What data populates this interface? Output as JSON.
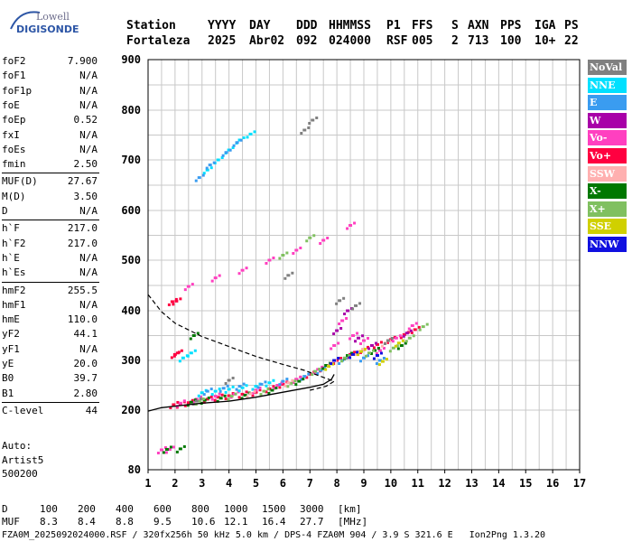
{
  "logo": {
    "line1": "Lowell",
    "line2": "DIGISONDE"
  },
  "header": {
    "labels": [
      "Station",
      "YYYY",
      "DAY",
      "DDD",
      "HHMMSS",
      "P1",
      "FFS",
      "S",
      "AXN",
      "PPS",
      "IGA",
      "PS"
    ],
    "values": [
      "Fortaleza",
      "2025",
      "Abr02",
      "092",
      "024000",
      "RSF",
      "005",
      "2",
      "713",
      "100",
      "10+",
      "22"
    ]
  },
  "params": [
    {
      "name": "foF2",
      "value": "7.900"
    },
    {
      "name": "foF1",
      "value": "N/A"
    },
    {
      "name": "foF1p",
      "value": "N/A"
    },
    {
      "name": "foE",
      "value": "N/A"
    },
    {
      "name": "foEp",
      "value": "0.52"
    },
    {
      "name": "fxI",
      "value": "N/A"
    },
    {
      "name": "foEs",
      "value": "N/A"
    },
    {
      "name": "fmin",
      "value": "2.50"
    },
    {
      "name": "MUF(D)",
      "value": "27.67"
    },
    {
      "name": "M(D)",
      "value": "3.50"
    },
    {
      "name": "D",
      "value": "N/A"
    },
    {
      "name": "h`F",
      "value": "217.0"
    },
    {
      "name": "h`F2",
      "value": "217.0"
    },
    {
      "name": "h`E",
      "value": "N/A"
    },
    {
      "name": "h`Es",
      "value": "N/A"
    },
    {
      "name": "hmF2",
      "value": "255.5"
    },
    {
      "name": "hmF1",
      "value": "N/A"
    },
    {
      "name": "hmE",
      "value": "110.0"
    },
    {
      "name": "yF2",
      "value": "44.1"
    },
    {
      "name": "yF1",
      "value": "N/A"
    },
    {
      "name": "yE",
      "value": "20.0"
    },
    {
      "name": "B0",
      "value": "39.7"
    },
    {
      "name": "B1",
      "value": "2.80"
    },
    {
      "name": "C-level",
      "value": "44"
    }
  ],
  "autoscale": {
    "line1": "Auto:",
    "line2": "Artist5",
    "line3": "500200"
  },
  "legend": [
    {
      "label": "NoVal",
      "color": "#808080"
    },
    {
      "label": "NNE",
      "color": "#00e0ff"
    },
    {
      "label": "E",
      "color": "#3a9cf0"
    },
    {
      "label": "W",
      "color": "#a800a8"
    },
    {
      "label": "Vo-",
      "color": "#ff40c0"
    },
    {
      "label": "Vo+",
      "color": "#ff0040"
    },
    {
      "label": "SSW",
      "color": "#ffb0b0"
    },
    {
      "label": "X-",
      "color": "#007800"
    },
    {
      "label": "X+",
      "color": "#80c060"
    },
    {
      "label": "SSE",
      "color": "#d0d000"
    },
    {
      "label": "NNW",
      "color": "#1010e0"
    }
  ],
  "footer": {
    "row1_label": "D",
    "row1_values": [
      "100",
      "200",
      "400",
      "600",
      "800",
      "1000",
      "1500",
      "3000"
    ],
    "row1_unit": "[km]",
    "row2_label": "MUF",
    "row2_values": [
      "8.3",
      "8.4",
      "8.8",
      "9.5",
      "10.6",
      "12.1",
      "16.4",
      "27.7"
    ],
    "row2_unit": "[MHz]",
    "file_line": "FZA0M_2025092024000.RSF / 320fx256h 50 kHz 5.0 km / DPS-4 FZA0M 904 / 3.9 S 321.6 E   Ion2Png 1.3.20"
  },
  "chart_data": {
    "type": "scatter",
    "x_ticks": [
      1,
      2,
      3,
      4,
      5,
      6,
      7,
      8,
      9,
      10,
      11,
      12,
      13,
      14,
      15,
      16,
      17
    ],
    "y_ticks": [
      80,
      200,
      300,
      400,
      500,
      600,
      700,
      800,
      900
    ],
    "xlim": [
      1,
      17
    ],
    "ylim": [
      80,
      900
    ],
    "grid": true,
    "legend_position": "right",
    "series": [
      {
        "legend": "Vo+",
        "points": [
          [
            1.95,
            211
          ],
          [
            2.2,
            212
          ],
          [
            2.5,
            215
          ],
          [
            2.8,
            219
          ],
          [
            3.2,
            222
          ],
          [
            3.6,
            226
          ],
          [
            4.0,
            229
          ],
          [
            4.5,
            232
          ],
          [
            5.0,
            236
          ],
          [
            5.5,
            243
          ],
          [
            6.0,
            252
          ],
          [
            6.5,
            262
          ],
          [
            7.0,
            272
          ],
          [
            7.5,
            285
          ],
          [
            8.0,
            300
          ],
          [
            8.5,
            312
          ],
          [
            9.0,
            322
          ],
          [
            9.5,
            332
          ],
          [
            10.0,
            342
          ],
          [
            10.5,
            352
          ],
          [
            10.9,
            362
          ],
          [
            2.0,
            312
          ],
          [
            2.1,
            315
          ],
          [
            1.9,
            418
          ],
          [
            2.05,
            419
          ]
        ]
      },
      {
        "legend": "Vo-",
        "points": [
          [
            2.2,
            214
          ],
          [
            2.8,
            222
          ],
          [
            3.5,
            228
          ],
          [
            4.2,
            232
          ],
          [
            5.0,
            240
          ],
          [
            5.8,
            250
          ],
          [
            6.5,
            262
          ],
          [
            7.3,
            282
          ],
          [
            7.9,
            330
          ],
          [
            8.2,
            380
          ],
          [
            8.6,
            350
          ],
          [
            9.0,
            340
          ],
          [
            9.6,
            320
          ],
          [
            10.2,
            345
          ],
          [
            10.8,
            370
          ],
          [
            1.5,
            120
          ],
          [
            1.8,
            121
          ],
          [
            2.5,
            448
          ],
          [
            3.5,
            465
          ],
          [
            4.5,
            480
          ],
          [
            5.5,
            500
          ],
          [
            6.5,
            520
          ],
          [
            7.5,
            540
          ],
          [
            8.5,
            570
          ]
        ]
      },
      {
        "legend": "NNE",
        "points": [
          [
            3.0,
            235
          ],
          [
            3.5,
            238
          ],
          [
            4.0,
            242
          ],
          [
            4.5,
            245
          ],
          [
            5.0,
            248
          ],
          [
            5.5,
            255
          ],
          [
            3.2,
            680
          ],
          [
            3.6,
            700
          ],
          [
            4.0,
            720
          ],
          [
            4.4,
            740
          ],
          [
            4.8,
            752
          ],
          [
            2.3,
            305
          ],
          [
            2.6,
            315
          ]
        ]
      },
      {
        "legend": "E",
        "points": [
          [
            3.2,
            238
          ],
          [
            3.8,
            244
          ],
          [
            4.4,
            248
          ],
          [
            5.2,
            252
          ],
          [
            6.0,
            258
          ],
          [
            6.8,
            268
          ],
          [
            7.4,
            280
          ],
          [
            8.2,
            300
          ],
          [
            9.0,
            305
          ],
          [
            9.6,
            300
          ],
          [
            2.9,
            665
          ],
          [
            3.3,
            690
          ],
          [
            3.9,
            715
          ],
          [
            4.3,
            735
          ]
        ]
      },
      {
        "legend": "X-",
        "points": [
          [
            2.6,
            216
          ],
          [
            3.1,
            220
          ],
          [
            3.7,
            224
          ],
          [
            4.6,
            230
          ],
          [
            5.6,
            240
          ],
          [
            6.6,
            258
          ],
          [
            7.6,
            290
          ],
          [
            8.4,
            310
          ],
          [
            9.4,
            320
          ],
          [
            10.4,
            330
          ],
          [
            1.7,
            121
          ],
          [
            2.2,
            122
          ],
          [
            2.7,
            350
          ]
        ]
      },
      {
        "legend": "X+",
        "points": [
          [
            2.9,
            218
          ],
          [
            4.1,
            228
          ],
          [
            5.3,
            238
          ],
          [
            6.3,
            254
          ],
          [
            7.2,
            278
          ],
          [
            8.3,
            305
          ],
          [
            9.2,
            315
          ],
          [
            10.1,
            325
          ],
          [
            10.7,
            345
          ],
          [
            11.2,
            368
          ],
          [
            6.0,
            510
          ],
          [
            7.0,
            545
          ]
        ]
      },
      {
        "legend": "SSW",
        "points": [
          [
            4.8,
            233
          ],
          [
            6.2,
            255
          ],
          [
            7.8,
            295
          ],
          [
            8.8,
            318
          ],
          [
            9.8,
            335
          ]
        ]
      },
      {
        "legend": "SSE",
        "points": [
          [
            7.7,
            288
          ],
          [
            8.9,
            318
          ],
          [
            9.7,
            298
          ],
          [
            10.3,
            335
          ]
        ]
      },
      {
        "legend": "W",
        "points": [
          [
            8.0,
            360
          ],
          [
            8.4,
            400
          ],
          [
            8.8,
            345
          ],
          [
            9.3,
            330
          ],
          [
            10.6,
            355
          ]
        ]
      },
      {
        "legend": "NNW",
        "points": [
          [
            7.9,
            300
          ],
          [
            8.6,
            312
          ],
          [
            9.5,
            310
          ]
        ]
      },
      {
        "legend": "NoVal",
        "points": [
          [
            2.8,
            218
          ],
          [
            4.0,
            260
          ],
          [
            6.2,
            470
          ],
          [
            7.1,
            780
          ],
          [
            6.8,
            760
          ],
          [
            8.1,
            420
          ],
          [
            8.7,
            410
          ],
          [
            9.9,
            340
          ]
        ]
      }
    ],
    "virtual_height_trace": {
      "x": [
        1.0,
        1.5,
        2.0,
        3.0,
        4.0,
        5.0,
        6.0,
        7.0,
        7.5,
        7.8,
        7.9
      ],
      "y": [
        198,
        205,
        208,
        214,
        218,
        226,
        236,
        246,
        252,
        262,
        272
      ]
    },
    "profile_trace": {
      "x": [
        1.0,
        1.5,
        2.0,
        3.0,
        4.0,
        5.0,
        6.0,
        6.8,
        7.3,
        7.7,
        7.9,
        7.6,
        7.0
      ],
      "y": [
        432,
        398,
        375,
        348,
        328,
        308,
        292,
        280,
        270,
        262,
        258,
        248,
        240
      ]
    }
  }
}
